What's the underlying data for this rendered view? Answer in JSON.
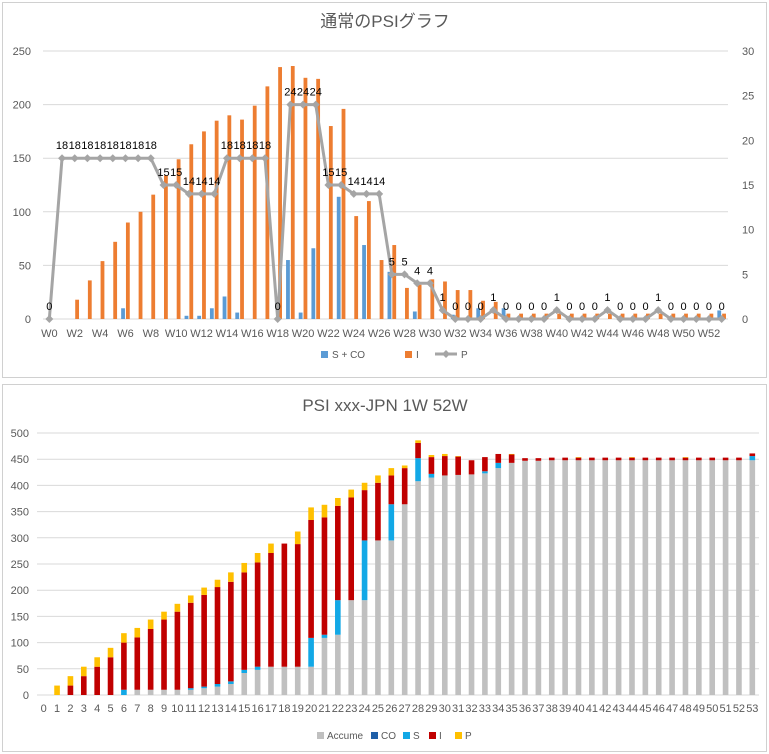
{
  "charts": [
    {
      "type": "bar+line",
      "title": "通常のPSIグラフ",
      "ylim_left": [
        0,
        250
      ],
      "yticks_left": [
        0,
        50,
        100,
        150,
        200,
        250
      ],
      "ylim_right": [
        0,
        30
      ],
      "yticks_right": [
        0,
        5,
        10,
        15,
        20,
        25,
        30
      ],
      "x_labels": [
        "W0",
        "W2",
        "W4",
        "W6",
        "W8",
        "W10",
        "W12",
        "W14",
        "W16",
        "W18",
        "W20",
        "W22",
        "W24",
        "W26",
        "W28",
        "W30",
        "W32",
        "W34",
        "W36",
        "W38",
        "W40",
        "W42",
        "W44",
        "W46",
        "W48",
        "W50",
        "W52"
      ],
      "weeks": [
        0,
        1,
        2,
        3,
        4,
        5,
        6,
        7,
        8,
        9,
        10,
        11,
        12,
        13,
        14,
        15,
        16,
        17,
        18,
        19,
        20,
        21,
        22,
        23,
        24,
        25,
        26,
        27,
        28,
        29,
        30,
        31,
        32,
        33,
        34,
        35,
        36,
        37,
        38,
        39,
        40,
        41,
        42,
        43,
        44,
        45,
        46,
        47,
        48,
        49,
        50,
        51,
        52,
        53
      ],
      "series": [
        {
          "name": "S + CO",
          "color": "#5b9bd5",
          "axis": "left",
          "values": [
            0,
            0,
            0,
            0,
            0,
            0,
            10,
            0,
            0,
            0,
            0,
            3,
            3,
            10,
            21,
            6,
            0,
            0,
            0,
            55,
            6,
            66,
            0,
            114,
            0,
            69,
            0,
            44,
            0,
            7,
            0,
            0,
            4,
            0,
            10,
            0,
            10,
            0,
            0,
            0,
            0,
            0,
            0,
            0,
            0,
            0,
            0,
            0,
            0,
            0,
            0,
            0,
            0,
            8
          ]
        },
        {
          "name": "I",
          "color": "#ed7d31",
          "axis": "left",
          "values": [
            0,
            0,
            18,
            36,
            54,
            72,
            90,
            100,
            116,
            134,
            149,
            163,
            175,
            185,
            190,
            186,
            199,
            217,
            235,
            236,
            225,
            224,
            180,
            196,
            96,
            110,
            55,
            69,
            29,
            32,
            37,
            35,
            27,
            27,
            17,
            16,
            5,
            5,
            5,
            5,
            5,
            5,
            5,
            5,
            5,
            5,
            5,
            5,
            5,
            5,
            5,
            5,
            5,
            5
          ]
        },
        {
          "name": "P",
          "color": "#a5a5a5",
          "axis": "right",
          "values": [
            0,
            18,
            18,
            18,
            18,
            18,
            18,
            18,
            18,
            15,
            15,
            14,
            14,
            14,
            18,
            18,
            18,
            18,
            0,
            24,
            24,
            24,
            15,
            15,
            14,
            14,
            14,
            5,
            5,
            4,
            4,
            1,
            0,
            0,
            0,
            1,
            0,
            0,
            0,
            0,
            1,
            0,
            0,
            0,
            1,
            0,
            0,
            0,
            1,
            0,
            0,
            0,
            0,
            0
          ]
        }
      ],
      "point_labels": [
        {
          "x": 0,
          "text": "0"
        },
        {
          "x": 1,
          "text": "18"
        },
        {
          "x": 2,
          "text": "18"
        },
        {
          "x": 3,
          "text": "18"
        },
        {
          "x": 4,
          "text": "18"
        },
        {
          "x": 5,
          "text": "18"
        },
        {
          "x": 6,
          "text": "18"
        },
        {
          "x": 7,
          "text": "18"
        },
        {
          "x": 8,
          "text": "18"
        },
        {
          "x": 9,
          "text": "15"
        },
        {
          "x": 10,
          "text": "15"
        },
        {
          "x": 11,
          "text": "14"
        },
        {
          "x": 12,
          "text": "14"
        },
        {
          "x": 13,
          "text": "14"
        },
        {
          "x": 14,
          "text": "18"
        },
        {
          "x": 15,
          "text": "18"
        },
        {
          "x": 16,
          "text": "18"
        },
        {
          "x": 17,
          "text": "18"
        },
        {
          "x": 18,
          "text": "0"
        },
        {
          "x": 19,
          "text": "24"
        },
        {
          "x": 20,
          "text": "24"
        },
        {
          "x": 21,
          "text": "24"
        },
        {
          "x": 22,
          "text": "15"
        },
        {
          "x": 23,
          "text": "15"
        },
        {
          "x": 24,
          "text": "14"
        },
        {
          "x": 25,
          "text": "14"
        },
        {
          "x": 26,
          "text": "14"
        },
        {
          "x": 27,
          "text": "5"
        },
        {
          "x": 28,
          "text": "5"
        },
        {
          "x": 29,
          "text": "4"
        },
        {
          "x": 30,
          "text": "4"
        },
        {
          "x": 31,
          "text": "1"
        },
        {
          "x": 32,
          "text": "0"
        },
        {
          "x": 33,
          "text": "0"
        },
        {
          "x": 34,
          "text": "0"
        },
        {
          "x": 35,
          "text": "1"
        },
        {
          "x": 36,
          "text": "0"
        },
        {
          "x": 37,
          "text": "0"
        },
        {
          "x": 38,
          "text": "0"
        },
        {
          "x": 39,
          "text": "0"
        },
        {
          "x": 40,
          "text": "1"
        },
        {
          "x": 41,
          "text": "0"
        },
        {
          "x": 42,
          "text": "0"
        },
        {
          "x": 43,
          "text": "0"
        },
        {
          "x": 44,
          "text": "1"
        },
        {
          "x": 45,
          "text": "0"
        },
        {
          "x": 46,
          "text": "0"
        },
        {
          "x": 47,
          "text": "0"
        },
        {
          "x": 48,
          "text": "1"
        },
        {
          "x": 49,
          "text": "0"
        },
        {
          "x": 50,
          "text": "0"
        },
        {
          "x": 51,
          "text": "0"
        },
        {
          "x": 52,
          "text": "0"
        },
        {
          "x": 53,
          "text": "0"
        }
      ],
      "legend": [
        "S + CO",
        "I",
        "P"
      ],
      "legend_position": "bottom",
      "grid": true
    },
    {
      "type": "stacked-bar",
      "title": "PSI xxx-JPN 1W 52W",
      "ylim": [
        0,
        500
      ],
      "yticks": [
        0,
        50,
        100,
        150,
        200,
        250,
        300,
        350,
        400,
        450,
        500
      ],
      "categories": [
        "0",
        "1",
        "2",
        "3",
        "4",
        "5",
        "6",
        "7",
        "8",
        "9",
        "10",
        "11",
        "12",
        "13",
        "14",
        "15",
        "16",
        "17",
        "18",
        "19",
        "20",
        "21",
        "22",
        "23",
        "24",
        "25",
        "26",
        "27",
        "28",
        "29",
        "30",
        "31",
        "32",
        "33",
        "34",
        "35",
        "36",
        "37",
        "38",
        "39",
        "40",
        "41",
        "42",
        "43",
        "44",
        "45",
        "46",
        "47",
        "48",
        "49",
        "50",
        "51",
        "52",
        "53"
      ],
      "series": [
        {
          "name": "Accume",
          "color": "#c0c0c0",
          "values": [
            0,
            0,
            0,
            0,
            0,
            0,
            0,
            10,
            10,
            10,
            10,
            10,
            13,
            16,
            21,
            42,
            48,
            54,
            54,
            54,
            54,
            109,
            115,
            181,
            181,
            295,
            295,
            364,
            408,
            415,
            419,
            420,
            421,
            423,
            433,
            443,
            447,
            447,
            448,
            448,
            448,
            448,
            448,
            448,
            448,
            448,
            448,
            448,
            448,
            448,
            448,
            448,
            448,
            448
          ]
        },
        {
          "name": "CO",
          "color": "#1f5fa8",
          "values": [
            0,
            0,
            0,
            0,
            0,
            0,
            0,
            0,
            0,
            0,
            0,
            0,
            0,
            0,
            0,
            0,
            0,
            0,
            0,
            0,
            0,
            0,
            0,
            0,
            0,
            0,
            0,
            0,
            0,
            0,
            0,
            0,
            0,
            0,
            0,
            0,
            0,
            0,
            0,
            0,
            0,
            0,
            0,
            0,
            0,
            0,
            0,
            0,
            0,
            0,
            0,
            0,
            0,
            0
          ]
        },
        {
          "name": "S",
          "color": "#12a8e6",
          "values": [
            0,
            0,
            0,
            0,
            0,
            0,
            10,
            0,
            0,
            0,
            0,
            3,
            3,
            5,
            5,
            6,
            6,
            0,
            0,
            0,
            55,
            6,
            66,
            0,
            114,
            0,
            69,
            0,
            44,
            7,
            0,
            0,
            0,
            4,
            10,
            0,
            0,
            0,
            0,
            0,
            0,
            0,
            0,
            0,
            0,
            0,
            0,
            0,
            0,
            0,
            0,
            0,
            0,
            8
          ]
        },
        {
          "name": "I",
          "color": "#c00000",
          "values": [
            0,
            0,
            18,
            36,
            54,
            72,
            90,
            100,
            116,
            134,
            149,
            163,
            175,
            185,
            190,
            186,
            199,
            217,
            235,
            234,
            225,
            224,
            180,
            196,
            96,
            110,
            55,
            69,
            29,
            32,
            37,
            35,
            27,
            27,
            17,
            16,
            5,
            5,
            5,
            5,
            5,
            5,
            5,
            5,
            5,
            5,
            5,
            5,
            5,
            5,
            5,
            5,
            5,
            5
          ]
        },
        {
          "name": "P",
          "color": "#ffc000",
          "values": [
            0,
            18,
            18,
            18,
            18,
            18,
            18,
            18,
            18,
            15,
            15,
            14,
            14,
            14,
            18,
            18,
            18,
            18,
            0,
            24,
            24,
            24,
            15,
            15,
            14,
            14,
            14,
            5,
            5,
            4,
            4,
            1,
            0,
            0,
            0,
            1,
            0,
            0,
            0,
            0,
            1,
            0,
            0,
            0,
            1,
            0,
            0,
            0,
            1,
            0,
            0,
            0,
            0,
            0
          ]
        }
      ],
      "legend": [
        "Accume",
        "CO",
        "S",
        "I",
        "P"
      ],
      "legend_position": "bottom",
      "grid": true
    }
  ]
}
